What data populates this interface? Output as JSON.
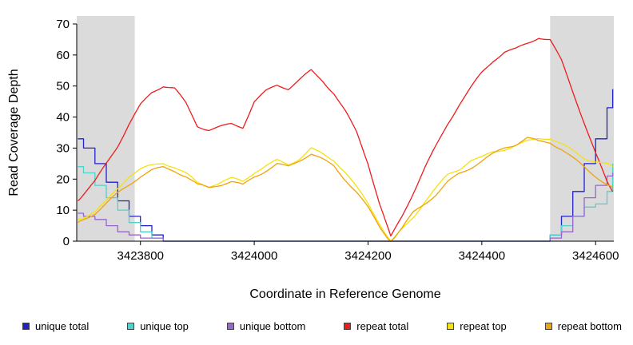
{
  "chart_data": {
    "type": "line",
    "title": "",
    "xlabel": "Coordinate in Reference Genome",
    "ylabel": "Read Coverage Depth",
    "xlim": [
      3423688,
      3424632
    ],
    "ylim": [
      0,
      70
    ],
    "xticks": [
      3423800,
      3424000,
      3424200,
      3424400,
      3424600
    ],
    "yticks": [
      0,
      10,
      20,
      30,
      40,
      50,
      60,
      70
    ],
    "grid": "off",
    "legend_position": "bottom",
    "shaded_regions": [
      {
        "x0": 3423688,
        "x1": 3423790,
        "color": "#dbdbdb"
      },
      {
        "x0": 3424520,
        "x1": 3424632,
        "color": "#dbdbdb"
      }
    ],
    "x": [
      3423690,
      3423700,
      3423720,
      3423740,
      3423760,
      3423780,
      3423800,
      3423820,
      3423840,
      3423860,
      3423880,
      3423900,
      3423920,
      3423940,
      3423960,
      3423980,
      3424000,
      3424020,
      3424040,
      3424060,
      3424080,
      3424100,
      3424120,
      3424140,
      3424160,
      3424180,
      3424200,
      3424220,
      3424240,
      3424260,
      3424280,
      3424300,
      3424320,
      3424340,
      3424360,
      3424380,
      3424400,
      3424420,
      3424440,
      3424460,
      3424480,
      3424500,
      3424520,
      3424540,
      3424560,
      3424580,
      3424600,
      3424620,
      3424630
    ],
    "series": [
      {
        "name": "unique total",
        "color": "#2222cc",
        "style": "step",
        "values": [
          33,
          30,
          25,
          19,
          13,
          8,
          5,
          2,
          0,
          0,
          0,
          0,
          0,
          0,
          0,
          0,
          0,
          0,
          0,
          0,
          0,
          0,
          0,
          0,
          0,
          0,
          0,
          0,
          0,
          0,
          0,
          0,
          0,
          0,
          0,
          0,
          0,
          0,
          0,
          0,
          0,
          0,
          2,
          8,
          16,
          25,
          33,
          43,
          49
        ]
      },
      {
        "name": "unique top",
        "color": "#4dd2cc",
        "style": "step",
        "values": [
          24,
          22,
          18,
          14,
          10,
          6,
          3,
          1,
          0,
          0,
          0,
          0,
          0,
          0,
          0,
          0,
          0,
          0,
          0,
          0,
          0,
          0,
          0,
          0,
          0,
          0,
          0,
          0,
          0,
          0,
          0,
          0,
          0,
          0,
          0,
          0,
          0,
          0,
          0,
          0,
          0,
          0,
          2,
          5,
          8,
          11,
          12,
          16,
          25
        ]
      },
      {
        "name": "unique bottom",
        "color": "#9966cc",
        "style": "step",
        "values": [
          9,
          8,
          7,
          5,
          3,
          2,
          1,
          1,
          0,
          0,
          0,
          0,
          0,
          0,
          0,
          0,
          0,
          0,
          0,
          0,
          0,
          0,
          0,
          0,
          0,
          0,
          0,
          0,
          0,
          0,
          0,
          0,
          0,
          0,
          0,
          0,
          0,
          0,
          0,
          0,
          0,
          0,
          1,
          3,
          8,
          14,
          18,
          21,
          22
        ]
      },
      {
        "name": "repeat total",
        "color": "#ee1c1c",
        "style": "wiggle",
        "values": [
          13,
          15,
          19,
          25,
          31,
          38,
          44,
          48,
          50,
          49,
          44,
          37,
          36,
          37,
          38,
          37,
          45,
          48,
          50,
          49,
          52,
          55,
          52,
          48,
          42,
          35,
          25,
          12,
          1,
          8,
          16,
          24,
          31,
          38,
          44,
          49,
          54,
          58,
          61,
          62,
          64,
          66,
          65,
          58,
          48,
          38,
          28,
          19,
          16
        ]
      },
      {
        "name": "repeat top",
        "color": "#f2e30e",
        "style": "wiggle",
        "values": [
          7,
          8,
          10,
          13,
          17,
          21,
          23,
          24,
          25,
          24,
          22,
          19,
          18,
          19,
          20,
          19,
          22,
          24,
          26,
          25,
          27,
          30,
          28,
          26,
          22,
          17,
          12,
          6,
          0,
          4,
          8,
          13,
          17,
          21,
          23,
          26,
          27,
          29,
          30,
          31,
          32,
          33,
          33,
          31,
          29,
          27,
          26,
          25,
          24
        ]
      },
      {
        "name": "repeat bottom",
        "color": "#f0a30a",
        "style": "wiggle",
        "values": [
          6,
          7,
          9,
          12,
          15,
          18,
          21,
          23,
          24,
          23,
          21,
          18,
          17,
          18,
          19,
          18,
          21,
          23,
          25,
          24,
          26,
          28,
          26,
          24,
          20,
          16,
          11,
          5,
          0,
          4,
          9,
          12,
          15,
          19,
          22,
          24,
          26,
          28,
          30,
          31,
          33,
          32,
          32,
          30,
          27,
          24,
          21,
          18,
          17
        ]
      }
    ]
  }
}
